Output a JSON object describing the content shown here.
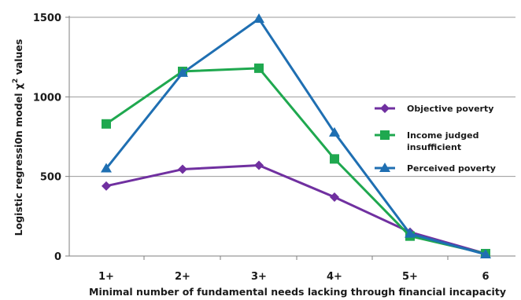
{
  "chart_data": {
    "type": "line",
    "categories": [
      "1+",
      "2+",
      "3+",
      "4+",
      "5+",
      "6"
    ],
    "ylabel_main": "Logistic regressi0n model χ",
    "ylabel_sup": "2",
    "ylabel_tail": " values",
    "xlabel": "Minimal number of fundamental needs lacking through financial incapacity",
    "ylim": [
      0,
      1500
    ],
    "yticks": [
      0,
      500,
      1000,
      1500
    ],
    "grid": "horizontal",
    "legend_position": "right",
    "series": [
      {
        "name": "Objective poverty",
        "color": "#7030a0",
        "marker": "diamond",
        "values": [
          440,
          545,
          570,
          370,
          150,
          15
        ]
      },
      {
        "name": "Income judged insufficient",
        "name_lines": [
          "Income judged",
          "insufficient"
        ],
        "color": "#1fa84f",
        "marker": "square",
        "values": [
          830,
          1160,
          1180,
          610,
          125,
          15
        ]
      },
      {
        "name": "Perceived poverty",
        "color": "#1f6fb2",
        "marker": "triangle",
        "values": [
          550,
          1150,
          1490,
          775,
          140,
          10
        ]
      }
    ]
  }
}
